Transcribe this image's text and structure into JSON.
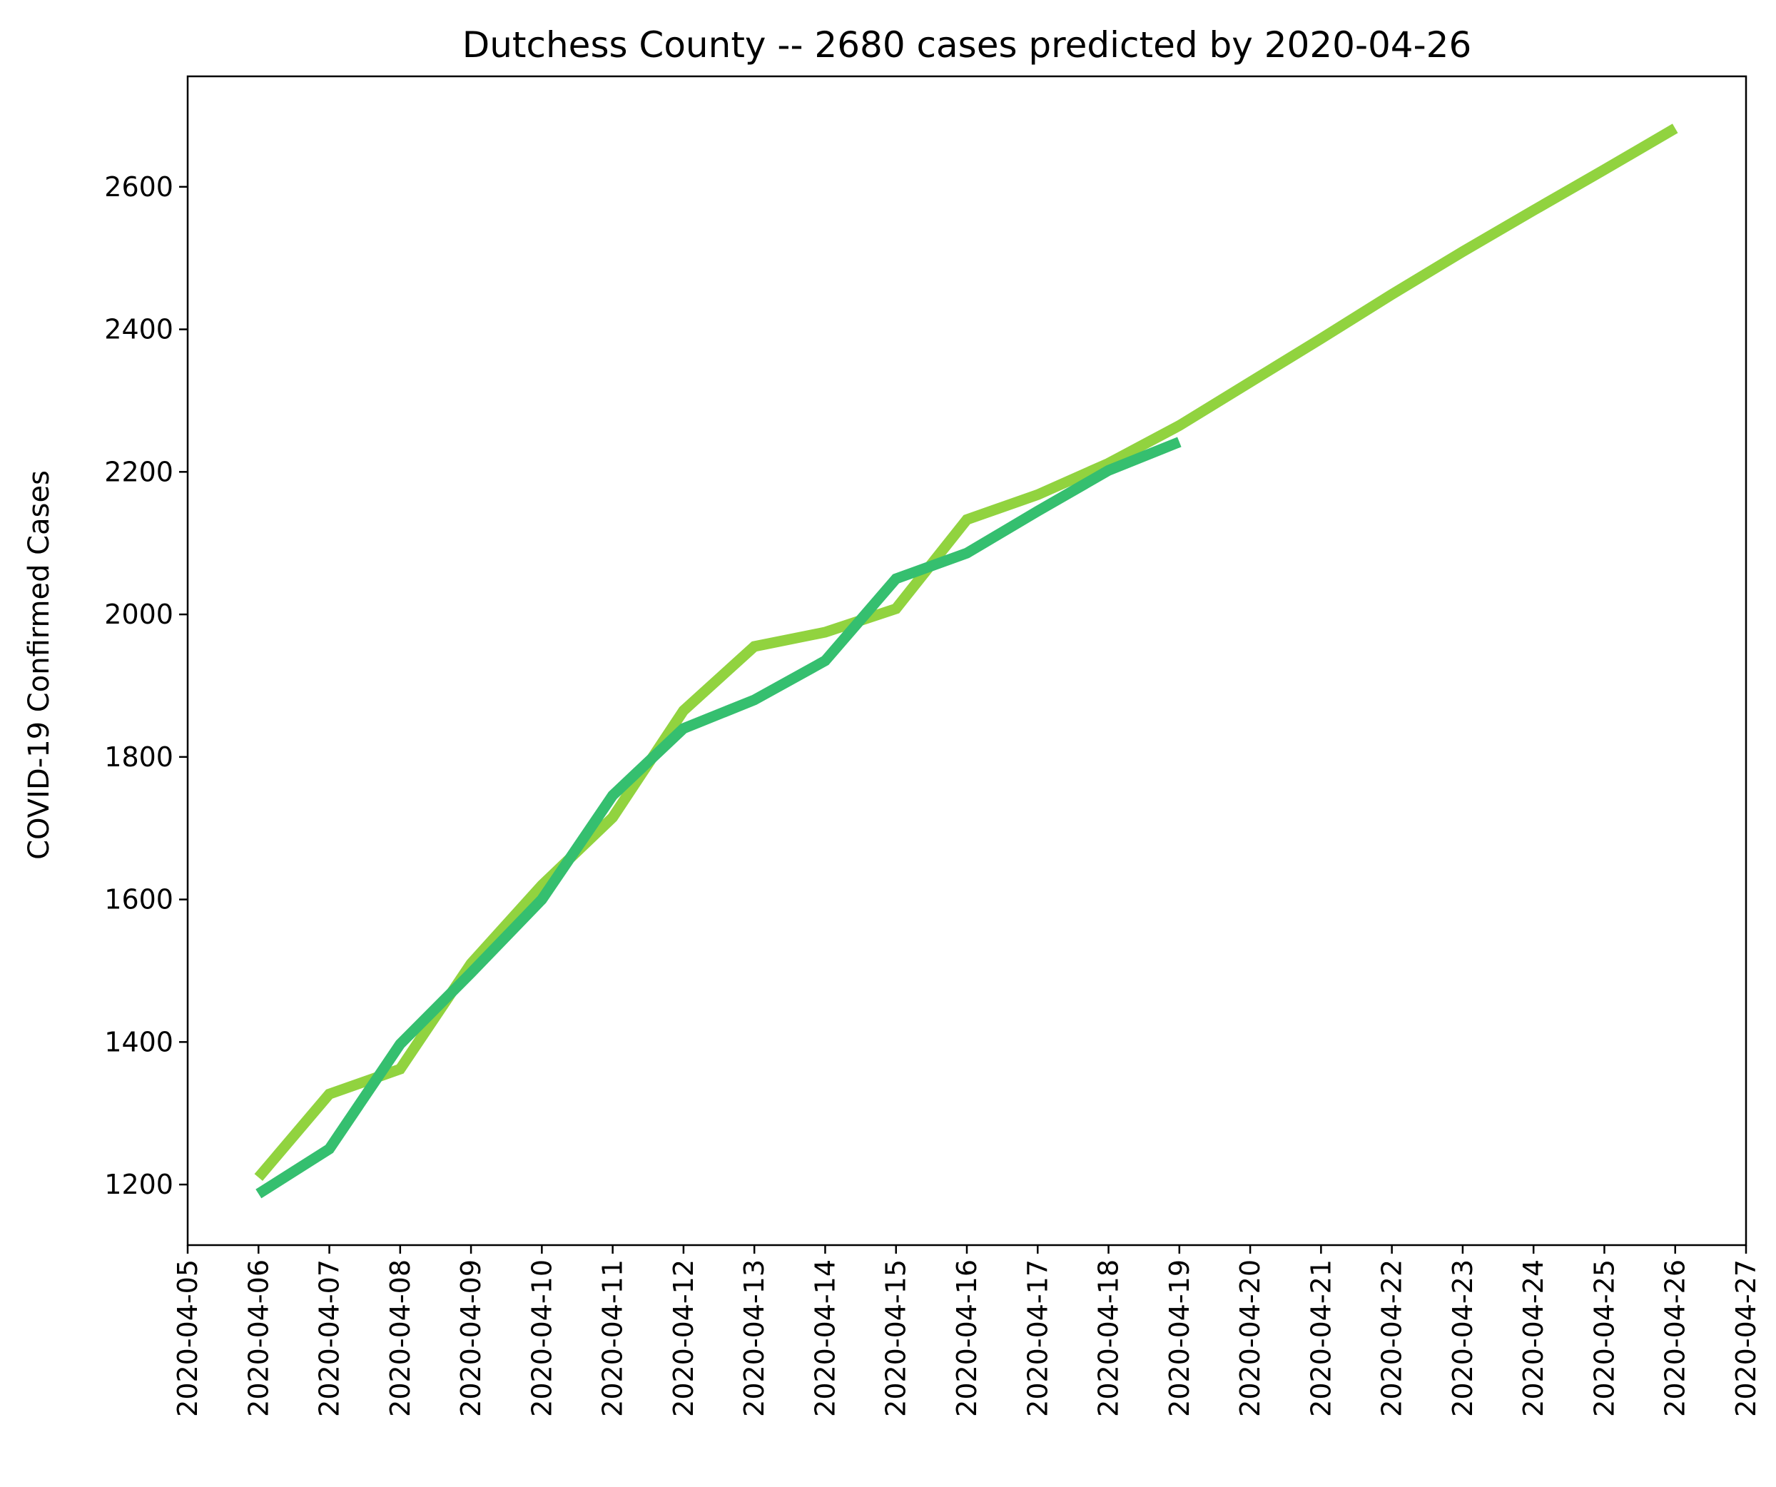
{
  "chart_data": {
    "type": "line",
    "title": "Dutchess County  --  2680 cases predicted by 2020-04-26",
    "xlabel": "",
    "ylabel": "COVID-19 Confirmed Cases",
    "x_ticks": [
      "2020-04-05",
      "2020-04-06",
      "2020-04-07",
      "2020-04-08",
      "2020-04-09",
      "2020-04-10",
      "2020-04-11",
      "2020-04-12",
      "2020-04-13",
      "2020-04-14",
      "2020-04-15",
      "2020-04-16",
      "2020-04-17",
      "2020-04-18",
      "2020-04-19",
      "2020-04-20",
      "2020-04-21",
      "2020-04-22",
      "2020-04-23",
      "2020-04-24",
      "2020-04-25",
      "2020-04-26",
      "2020-04-27"
    ],
    "y_ticks": [
      1200,
      1400,
      1600,
      1800,
      2000,
      2200,
      2400,
      2600
    ],
    "xlim": [
      "2020-04-05",
      "2020-04-27"
    ],
    "ylim": [
      1115,
      2755
    ],
    "grid": false,
    "series": [
      {
        "color": "#91d33f",
        "points": [
          {
            "x": "2020-04-06",
            "y": 1210
          },
          {
            "x": "2020-04-07",
            "y": 1327
          },
          {
            "x": "2020-04-08",
            "y": 1362
          },
          {
            "x": "2020-04-09",
            "y": 1510
          },
          {
            "x": "2020-04-10",
            "y": 1620
          },
          {
            "x": "2020-04-11",
            "y": 1715
          },
          {
            "x": "2020-04-12",
            "y": 1865
          },
          {
            "x": "2020-04-13",
            "y": 1955
          },
          {
            "x": "2020-04-14",
            "y": 1975
          },
          {
            "x": "2020-04-15",
            "y": 2008
          },
          {
            "x": "2020-04-16",
            "y": 2133
          },
          {
            "x": "2020-04-17",
            "y": 2168
          },
          {
            "x": "2020-04-18",
            "y": 2212
          },
          {
            "x": "2020-04-19",
            "y": 2265
          },
          {
            "x": "2020-04-20",
            "y": 2326
          },
          {
            "x": "2020-04-21",
            "y": 2387
          },
          {
            "x": "2020-04-22",
            "y": 2449
          },
          {
            "x": "2020-04-23",
            "y": 2509
          },
          {
            "x": "2020-04-24",
            "y": 2567
          },
          {
            "x": "2020-04-25",
            "y": 2624
          },
          {
            "x": "2020-04-26",
            "y": 2682
          }
        ]
      },
      {
        "color": "#35bf6f",
        "points": [
          {
            "x": "2020-04-06",
            "y": 1187
          },
          {
            "x": "2020-04-07",
            "y": 1250
          },
          {
            "x": "2020-04-08",
            "y": 1397
          },
          {
            "x": "2020-04-09",
            "y": 1497
          },
          {
            "x": "2020-04-10",
            "y": 1600
          },
          {
            "x": "2020-04-11",
            "y": 1746
          },
          {
            "x": "2020-04-12",
            "y": 1840
          },
          {
            "x": "2020-04-13",
            "y": 1880
          },
          {
            "x": "2020-04-14",
            "y": 1935
          },
          {
            "x": "2020-04-15",
            "y": 2050
          },
          {
            "x": "2020-04-16",
            "y": 2086
          },
          {
            "x": "2020-04-17",
            "y": 2145
          },
          {
            "x": "2020-04-18",
            "y": 2202
          },
          {
            "x": "2020-04-19",
            "y": 2242
          }
        ]
      }
    ]
  }
}
